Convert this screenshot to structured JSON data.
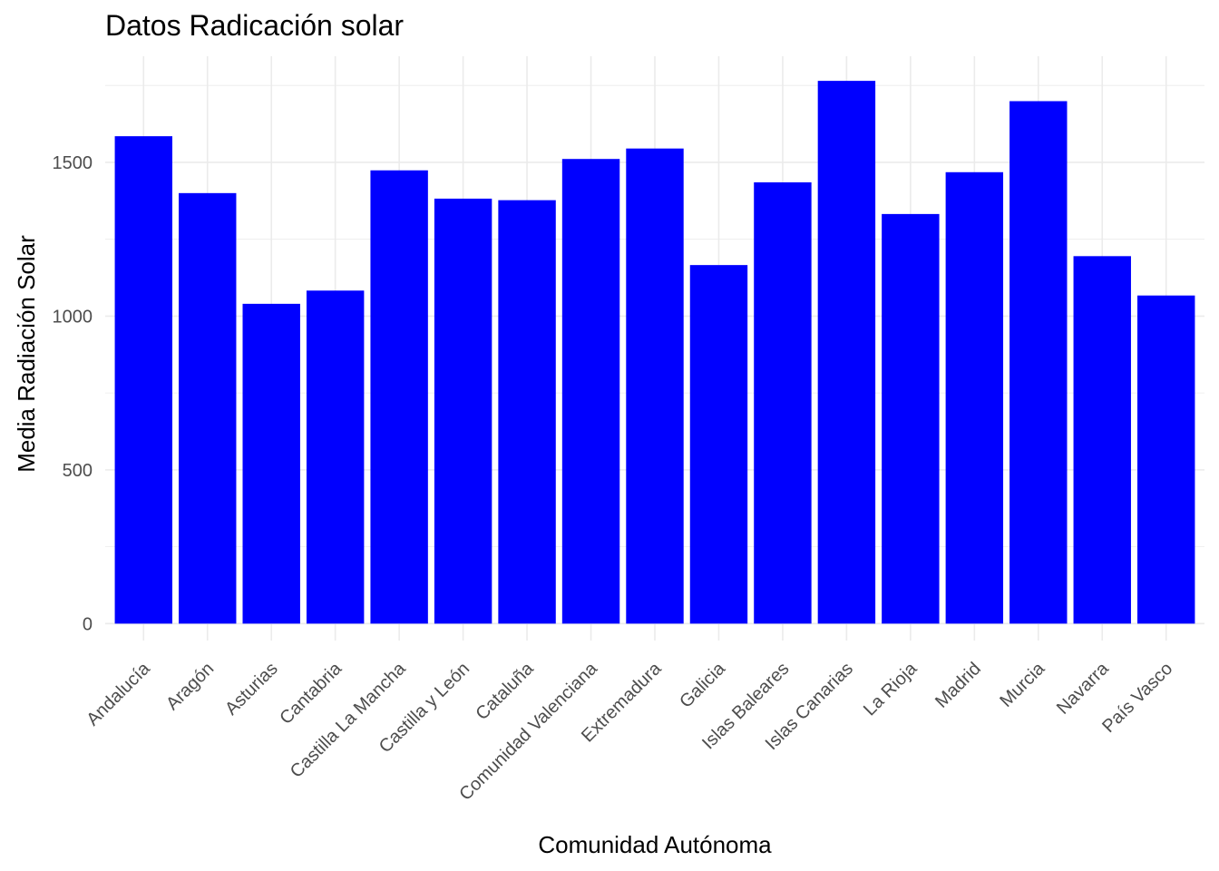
{
  "chart_data": {
    "type": "bar",
    "title": "Datos Radicación solar",
    "xlabel": "Comunidad Autónoma",
    "ylabel": "Media Radiación Solar",
    "categories": [
      "Andalucía",
      "Aragón",
      "Asturias",
      "Cantabria",
      "Castilla La Mancha",
      "Castilla y León",
      "Cataluña",
      "Comunidad Valenciana",
      "Extremadura",
      "Galicia",
      "Islas Baleares",
      "Islas Canarias",
      "La Rioja",
      "Madrid",
      "Murcia",
      "Navarra",
      "País Vasco"
    ],
    "values": [
      1585,
      1400,
      1040,
      1083,
      1474,
      1382,
      1377,
      1511,
      1545,
      1166,
      1435,
      1765,
      1332,
      1468,
      1699,
      1195,
      1067
    ],
    "yticks": [
      0,
      500,
      1000,
      1500
    ],
    "ylim": [
      -55,
      1845
    ],
    "grid": true,
    "legend": "none",
    "bar_color": "#0000ff",
    "grid_color": "#ebebeb",
    "background": "#ffffff"
  }
}
